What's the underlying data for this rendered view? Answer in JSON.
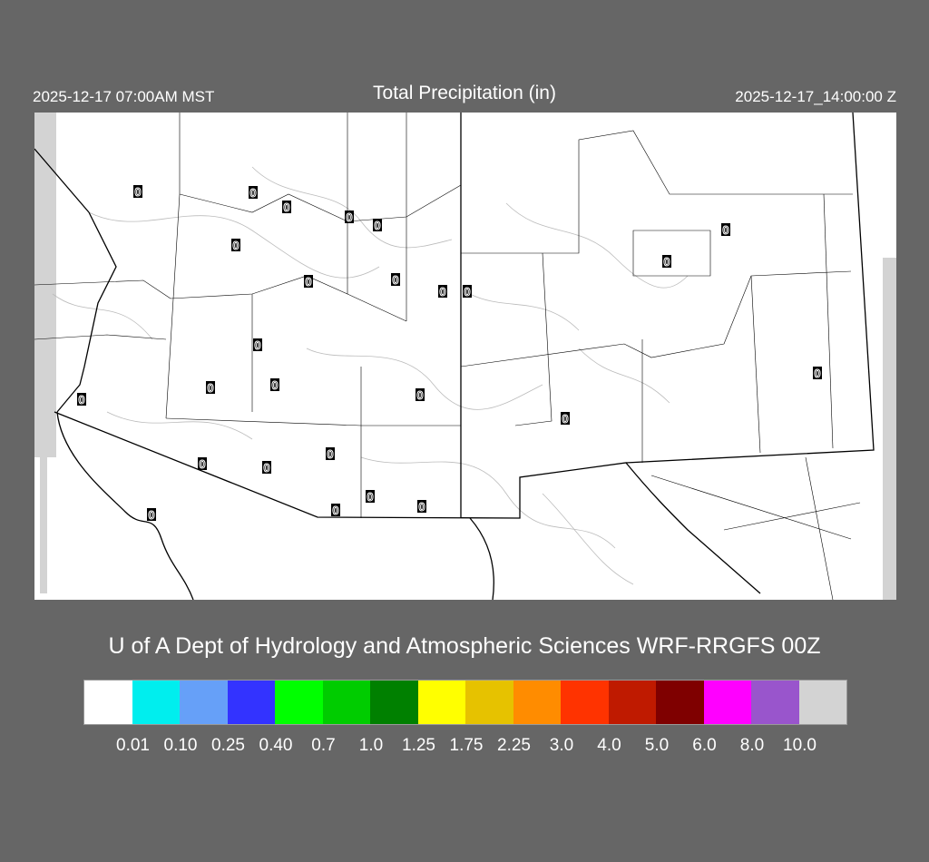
{
  "header": {
    "local_time": "2025-12-17 07:00AM MST",
    "title": "Total Precipitation (in)",
    "valid_time": "2025-12-17_14:00:00 Z"
  },
  "credit": "U of A Dept of Hydrology and Atmospheric Sciences WRF-RRGFS 00Z",
  "colorbar": {
    "colors": [
      "#ffffff",
      "#00eeee",
      "#66a0f8",
      "#3333ff",
      "#00ff00",
      "#00cc00",
      "#008000",
      "#ffff00",
      "#e6c200",
      "#ff8c00",
      "#ff3300",
      "#bf1a00",
      "#7f0000",
      "#ff00ff",
      "#9955cc",
      "#d3d3d3"
    ],
    "labels": [
      "0.01",
      "0.10",
      "0.25",
      "0.40",
      "0.7",
      "1.0",
      "1.25",
      "1.75",
      "2.25",
      "3.0",
      "4.0",
      "5.0",
      "6.0",
      "8.0",
      "10.0"
    ]
  },
  "stations": {
    "values": [
      "0",
      "0",
      "0",
      "0",
      "0",
      "0",
      "0",
      "0",
      "0",
      "0",
      "0",
      "0",
      "0",
      "0",
      "0",
      "0",
      "0",
      "0",
      "0",
      "0",
      "0",
      "0",
      "0",
      "0",
      "0",
      "0"
    ]
  },
  "colors": {
    "background": "#666666",
    "map": "#ffffff",
    "border": "#000000",
    "terrain_contour": "#bbbbbb"
  }
}
